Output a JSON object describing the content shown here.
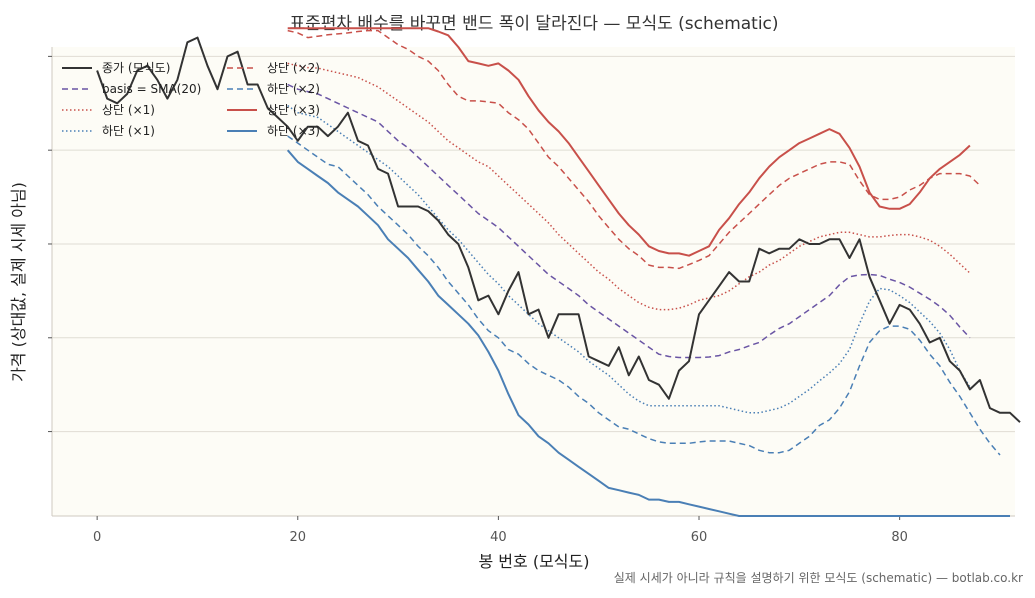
{
  "chart_data": {
    "type": "line",
    "title": "표준편차 배수를 바꾸면 밴드 폭이 달라진다 — 모식도 (schematic)",
    "xlabel": "봉 번호 (모식도)",
    "ylabel": "가격 (상대값, 실제 시세 아님)",
    "footer": "실제 시세가 아니라 규칙을 설명하기 위한 모식도 (schematic) — botlab.co.kr",
    "x_ticks": [
      0,
      20,
      40,
      60,
      80
    ],
    "xlim": [
      -4.5,
      91.5
    ],
    "ylim": [
      0,
      100
    ],
    "y_gridlines": [
      18,
      38,
      58,
      78,
      98
    ],
    "y_tick_labels_visible": false,
    "grid": "horizontal",
    "legend_position": "top-left",
    "colors": {
      "price": "#333333",
      "basis": "#6a55a4",
      "upper": "#c8504a",
      "lower": "#4a7fb5",
      "grid": "#e0ddd4",
      "plot_bg": "#fdfcf6",
      "frame": "#cfcac0"
    },
    "price": {
      "name": "종가 (모식도)",
      "x_start": 0,
      "values": [
        95,
        89,
        88,
        90,
        95,
        96,
        93,
        89,
        93,
        101,
        102,
        96,
        91,
        98,
        99,
        92,
        92,
        87,
        85,
        83,
        80,
        83,
        83,
        81,
        83,
        86,
        80,
        79,
        74,
        73,
        66,
        66,
        66,
        65,
        63,
        60,
        58,
        53,
        46,
        47,
        43,
        48,
        52,
        43,
        44,
        38,
        43,
        43,
        43,
        34,
        33,
        32,
        36,
        30,
        34,
        29,
        28,
        25,
        31,
        33,
        43,
        46,
        49,
        52,
        50,
        50,
        57,
        56,
        57,
        57,
        59,
        58,
        58,
        59,
        59,
        55,
        59,
        51,
        46,
        41,
        45,
        44,
        41,
        37,
        38,
        33,
        31,
        27,
        29,
        23,
        22,
        22,
        20
      ]
    },
    "series": [
      {
        "name": "basis = SMA(20)",
        "style": "dashed",
        "role": "basis",
        "x_start": 19,
        "values": [
          92,
          91,
          90.5,
          90,
          89,
          88,
          87,
          86,
          85,
          84,
          82,
          80,
          78.5,
          76.5,
          74.5,
          72.5,
          70.5,
          68.5,
          66.5,
          64.5,
          63,
          61.5,
          59.5,
          57.5,
          55.5,
          53.5,
          51.5,
          50,
          48.5,
          47,
          45,
          43.5,
          42,
          40.5,
          39,
          37.5,
          36,
          34.5,
          34,
          33.8,
          33.8,
          33.8,
          33.9,
          34.2,
          35,
          35.5,
          36.3,
          37,
          38.6,
          40,
          41,
          42.5,
          44,
          45.5,
          47,
          49.3,
          51,
          51.4,
          51.5,
          51.3,
          50.5,
          49.8,
          48.8,
          47.5,
          46.2,
          44.7,
          42.8,
          40.3,
          38
        ]
      },
      {
        "name": "상단 (×1)",
        "style": "dotted",
        "role": "upper",
        "x_start": 19,
        "values": [
          96.5,
          96,
          95.6,
          95.5,
          95,
          94.5,
          94,
          93.5,
          92.5,
          91.5,
          90,
          88.5,
          87,
          85.5,
          84,
          82,
          80,
          78.5,
          77,
          75.5,
          74.5,
          72.5,
          70.5,
          68.5,
          66.5,
          64.5,
          62.5,
          60,
          58,
          56,
          54,
          52,
          50.5,
          48.5,
          47,
          45.5,
          44.5,
          44,
          44,
          44.3,
          45,
          46,
          46.5,
          47,
          48,
          49.5,
          51,
          52,
          53.5,
          54.5,
          56,
          57.5,
          58.5,
          59.5,
          60,
          60.5,
          60.5,
          60,
          59.5,
          59.5,
          59.8,
          60,
          60,
          59.5,
          58.8,
          57.5,
          55.8,
          53.8,
          51.8
        ]
      },
      {
        "name": "하단 (×1)",
        "style": "dotted",
        "role": "lower",
        "x_start": 19,
        "values": [
          87.5,
          86,
          85.5,
          85,
          83.5,
          82,
          80.5,
          79,
          77.5,
          76,
          74.5,
          72.5,
          70.5,
          68.5,
          66,
          63.5,
          61,
          59,
          56.5,
          54,
          51.5,
          49.5,
          47,
          45,
          43,
          41,
          39.5,
          38,
          36.5,
          35,
          33,
          31.5,
          30,
          28,
          26,
          24.5,
          23.5,
          23.5,
          23.5,
          23.5,
          23.5,
          23.5,
          23.5,
          23.5,
          23,
          22.5,
          22,
          22,
          22.5,
          23,
          24,
          25.5,
          27,
          28.8,
          30.5,
          32.5,
          35.5,
          41,
          45.8,
          48.5,
          48.2,
          47,
          45.5,
          43.5,
          41.5,
          39,
          35.5,
          31,
          27.5
        ]
      },
      {
        "name": "상단 (×2)",
        "style": "dashed",
        "role": "upper",
        "x_start": 19,
        "values": [
          103.5,
          103,
          102,
          102.3,
          102.6,
          102.8,
          103,
          103.3,
          103.5,
          103.5,
          102,
          100.5,
          99.5,
          98,
          97,
          95,
          92,
          89.5,
          88.5,
          88.5,
          88.3,
          88,
          86,
          84.5,
          82.5,
          79.5,
          76.5,
          74.5,
          72,
          69.5,
          67,
          64,
          61.5,
          59,
          57,
          55.5,
          53.5,
          53,
          53,
          52.8,
          53.6,
          54.5,
          55.5,
          58,
          60.5,
          62.5,
          64.5,
          66.5,
          68.5,
          70.5,
          72,
          73,
          74,
          75,
          75.5,
          75.5,
          75,
          71.5,
          68.5,
          67.5,
          67.5,
          68,
          69.5,
          70.5,
          72,
          73,
          73,
          73,
          72.5,
          70.5
        ]
      },
      {
        "name": "하단 (×2)",
        "style": "dashed",
        "role": "lower",
        "x_start": 19,
        "values": [
          81,
          79.5,
          78,
          76.5,
          75,
          74.5,
          72.5,
          70.5,
          68.5,
          66,
          64,
          62,
          60,
          57.5,
          55.5,
          53,
          50,
          47.5,
          45,
          42,
          39.5,
          38,
          35.5,
          34.5,
          32.5,
          31,
          30,
          29,
          27.5,
          25.5,
          24,
          22,
          20.5,
          19,
          18.5,
          17.5,
          16.5,
          15.8,
          15.5,
          15.5,
          15.5,
          15.8,
          16,
          16,
          16,
          15.5,
          15,
          14,
          13.5,
          13.5,
          14,
          15.5,
          17,
          19.3,
          20.5,
          23,
          26.5,
          32,
          37,
          39.5,
          40.5,
          40.5,
          39.8,
          37.5,
          34.5,
          32,
          28.5,
          25.5,
          22,
          18.5,
          15.5,
          13
        ]
      },
      {
        "name": "상단 (×3)",
        "style": "solid",
        "role": "upper",
        "x_start": 19,
        "values": [
          104,
          104,
          104,
          104,
          104,
          104,
          104,
          104,
          104,
          104,
          104,
          104,
          104,
          104,
          104,
          103.3,
          102.5,
          100,
          97,
          96.5,
          96,
          96.5,
          95,
          93,
          89.5,
          86.5,
          84,
          82,
          79.5,
          76.5,
          73.5,
          70.5,
          67.5,
          64.5,
          62,
          60,
          57.5,
          56.5,
          56,
          56,
          55.5,
          56.5,
          57.5,
          61,
          63.5,
          66.5,
          69,
          72,
          74.5,
          76.5,
          78,
          79.5,
          80.5,
          81.5,
          82.5,
          81.5,
          78.5,
          74.5,
          69,
          66,
          65.5,
          65.5,
          66.5,
          69,
          72,
          74,
          75.5,
          77,
          79
        ]
      },
      {
        "name": "하단 (×3)",
        "style": "solid",
        "role": "lower",
        "x_start": 19,
        "values": [
          78,
          75.5,
          74,
          72.5,
          71,
          69,
          67.5,
          66,
          64,
          62,
          59,
          57,
          55,
          52.5,
          50,
          47,
          45,
          43,
          41,
          38.5,
          35,
          31,
          26,
          21.5,
          19.5,
          17,
          15.5,
          13.5,
          12,
          10.5,
          9,
          7.5,
          6,
          5.5,
          5,
          4.5,
          3.5,
          3.5,
          3,
          3,
          2.5,
          2,
          1.5,
          1,
          0.5,
          0,
          0,
          0,
          0,
          0,
          0,
          0,
          0,
          0,
          0,
          0,
          0,
          0,
          0,
          0,
          0,
          0,
          0,
          0,
          0,
          0,
          0,
          0,
          0,
          0,
          0,
          0,
          0
        ]
      }
    ]
  }
}
